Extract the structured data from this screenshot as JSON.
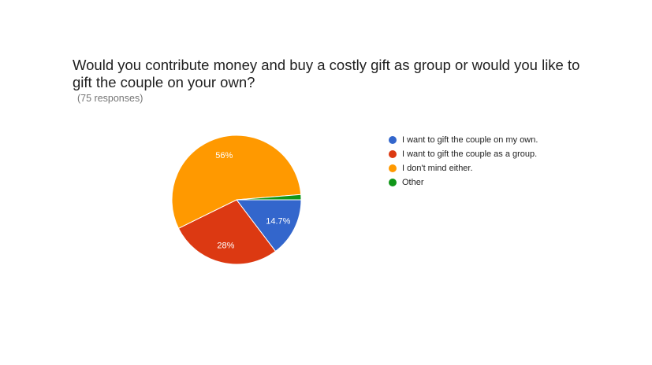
{
  "chart_data": {
    "type": "pie",
    "title": "Would you contribute money and buy a costly gift as group or would you like to gift the couple on your own?",
    "subtitle": "(75 responses)",
    "legend_position": "right",
    "slices": [
      {
        "label": "I want to gift the couple on my own.",
        "value": 14.7,
        "display": "14.7%",
        "color": "#3366cc"
      },
      {
        "label": "I want to gift the couple as a group.",
        "value": 28,
        "display": "28%",
        "color": "#dc3912"
      },
      {
        "label": "I don't mind either.",
        "value": 56,
        "display": "56%",
        "color": "#ff9900"
      },
      {
        "label": "Other",
        "value": 1.3,
        "display": "",
        "color": "#109618"
      }
    ]
  }
}
